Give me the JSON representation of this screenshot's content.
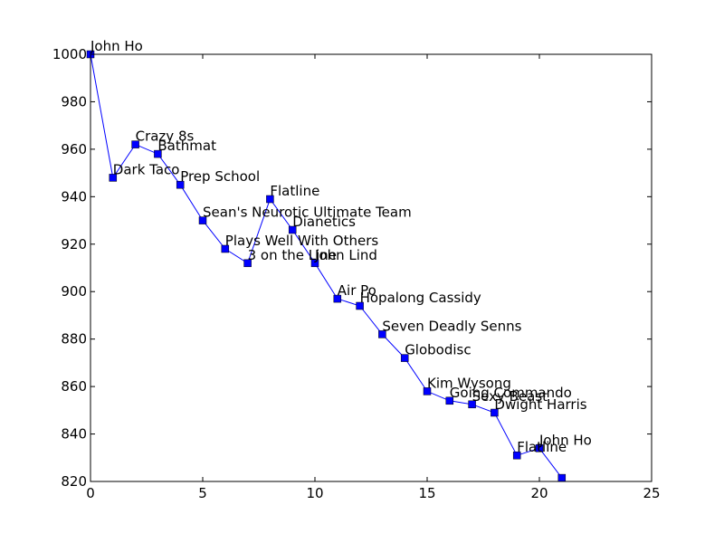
{
  "chart_data": {
    "type": "line",
    "title": "",
    "xlabel": "",
    "ylabel": "",
    "xlim": [
      0,
      25
    ],
    "ylim": [
      820,
      1000
    ],
    "xticks": [
      "0",
      "5",
      "10",
      "15",
      "20",
      "25"
    ],
    "yticks": [
      "820",
      "840",
      "860",
      "880",
      "900",
      "920",
      "940",
      "960",
      "980",
      "1000"
    ],
    "grid": false,
    "marker": "square",
    "colors": {
      "series": "#0000ff",
      "axes": "#000000",
      "background": "#ffffff"
    },
    "series": [
      {
        "x": [
          0,
          1,
          2,
          3,
          4,
          5,
          6,
          7,
          8,
          9,
          10,
          11,
          12,
          13,
          14,
          15,
          16,
          17,
          18,
          19,
          20,
          21
        ],
        "y": [
          1000,
          948,
          962,
          958,
          945,
          930,
          918,
          912,
          939,
          926,
          912,
          897,
          894,
          882,
          872,
          858,
          854,
          852.5,
          849,
          831,
          834,
          821.5
        ]
      }
    ],
    "annotations": [
      {
        "x": 0,
        "text": "John Ho"
      },
      {
        "x": 1,
        "text": "Dark Taco"
      },
      {
        "x": 2,
        "text": "Crazy 8s"
      },
      {
        "x": 3,
        "text": "Bathmat"
      },
      {
        "x": 4,
        "text": "Prep School"
      },
      {
        "x": 5,
        "text": "Sean's Neurotic Ultimate Team"
      },
      {
        "x": 6,
        "text": "Plays Well With Others"
      },
      {
        "x": 7,
        "text": "3 on the Line"
      },
      {
        "x": 8,
        "text": "Flatline"
      },
      {
        "x": 9,
        "text": "Dianetics"
      },
      {
        "x": 10,
        "text": "John Lind"
      },
      {
        "x": 11,
        "text": "Air Po"
      },
      {
        "x": 12,
        "text": "Hopalong Cassidy"
      },
      {
        "x": 13,
        "text": "Seven Deadly Senns"
      },
      {
        "x": 14,
        "text": "Globodisc"
      },
      {
        "x": 15,
        "text": "Kim Wysong"
      },
      {
        "x": 16,
        "text": "Going Commando"
      },
      {
        "x": 17,
        "text": "Sexy Beast"
      },
      {
        "x": 18,
        "text": "Dwight Harris"
      },
      {
        "x": 19,
        "text": "Flatline"
      },
      {
        "x": 20,
        "text": "John Ho"
      }
    ]
  }
}
